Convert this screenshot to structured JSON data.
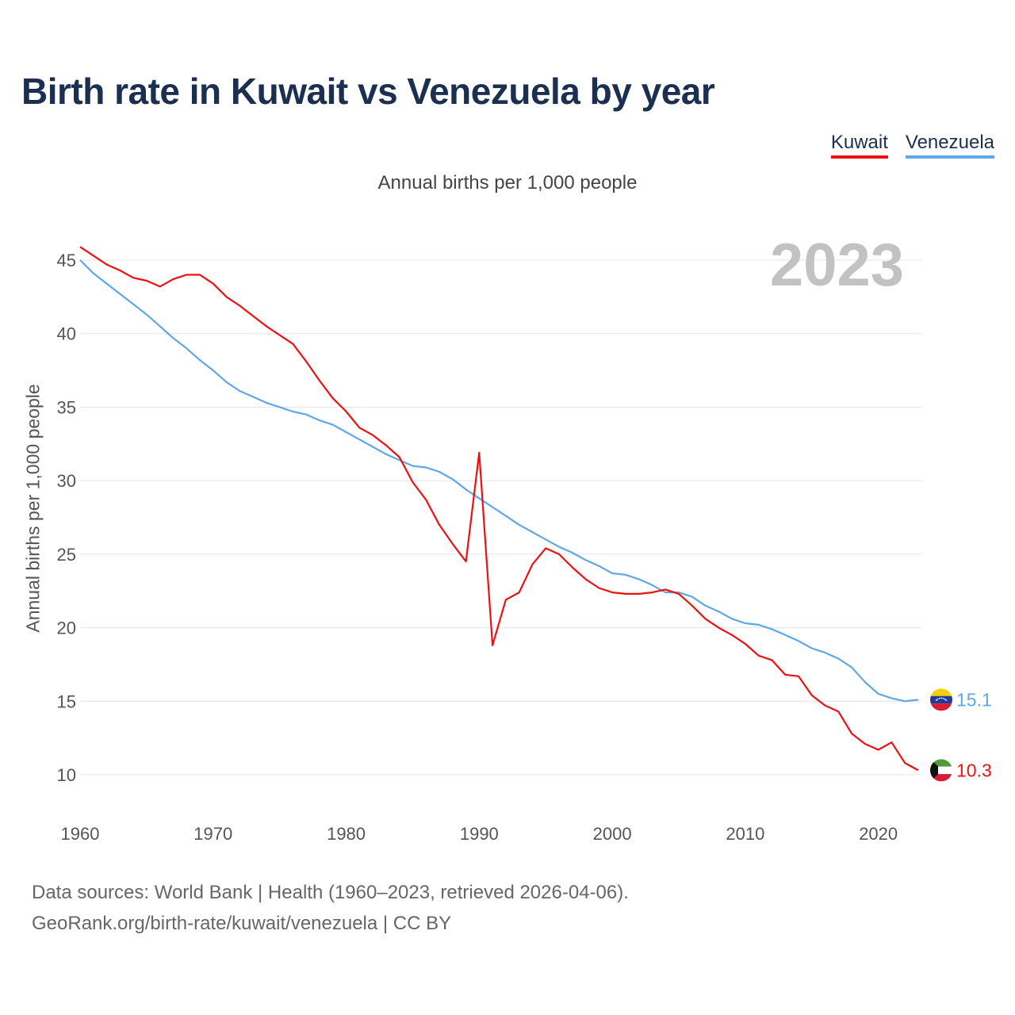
{
  "title": "Birth rate in Kuwait vs Venezuela by year",
  "subtitle": "Annual births per 1,000 people",
  "year_badge": "2023",
  "legend": [
    {
      "name": "Kuwait",
      "color": "#ee1111"
    },
    {
      "name": "Venezuela",
      "color": "#5ea8e8"
    }
  ],
  "footer": {
    "line1": "Data sources: World Bank | Health (1960–2023, retrieved 2026-04-06).",
    "line2": "GeoRank.org/birth-rate/kuwait/venezuela | CC BY"
  },
  "chart_data": {
    "type": "line",
    "title": "Birth rate in Kuwait vs Venezuela by year",
    "xlabel": "",
    "ylabel": "Annual births per 1,000 people",
    "xlim": [
      1960,
      2023
    ],
    "ylim": [
      8,
      46
    ],
    "x_ticks": [
      1960,
      1970,
      1980,
      1990,
      2000,
      2010,
      2020
    ],
    "y_ticks": [
      10,
      15,
      20,
      25,
      30,
      35,
      40,
      45
    ],
    "grid": true,
    "x": [
      1960,
      1961,
      1962,
      1963,
      1964,
      1965,
      1966,
      1967,
      1968,
      1969,
      1970,
      1971,
      1972,
      1973,
      1974,
      1975,
      1976,
      1977,
      1978,
      1979,
      1980,
      1981,
      1982,
      1983,
      1984,
      1985,
      1986,
      1987,
      1988,
      1989,
      1990,
      1991,
      1992,
      1993,
      1994,
      1995,
      1996,
      1997,
      1998,
      1999,
      2000,
      2001,
      2002,
      2003,
      2004,
      2005,
      2006,
      2007,
      2008,
      2009,
      2010,
      2011,
      2012,
      2013,
      2014,
      2015,
      2016,
      2017,
      2018,
      2019,
      2020,
      2021,
      2022,
      2023
    ],
    "series": [
      {
        "name": "Kuwait",
        "color": "#ee1111",
        "end_label": "10.3",
        "values": [
          45.9,
          45.3,
          44.7,
          44.3,
          43.8,
          43.6,
          43.2,
          43.7,
          44.0,
          44.0,
          43.4,
          42.5,
          41.9,
          41.2,
          40.5,
          39.9,
          39.3,
          38.1,
          36.8,
          35.6,
          34.7,
          33.6,
          33.1,
          32.4,
          31.6,
          29.9,
          28.7,
          27.0,
          25.7,
          24.5,
          31.9,
          18.8,
          21.9,
          22.4,
          24.3,
          25.4,
          25.0,
          24.1,
          23.3,
          22.7,
          22.4,
          22.3,
          22.3,
          22.4,
          22.6,
          22.3,
          21.5,
          20.6,
          20.0,
          19.5,
          18.9,
          18.1,
          17.8,
          16.8,
          16.7,
          15.4,
          14.7,
          14.3,
          12.8,
          12.1,
          11.7,
          12.2,
          10.8,
          10.3
        ]
      },
      {
        "name": "Venezuela",
        "color": "#5ea8e8",
        "end_label": "15.1",
        "values": [
          45.0,
          44.1,
          43.4,
          42.7,
          42.0,
          41.3,
          40.5,
          39.7,
          39.0,
          38.2,
          37.5,
          36.7,
          36.1,
          35.7,
          35.3,
          35.0,
          34.7,
          34.5,
          34.1,
          33.8,
          33.3,
          32.8,
          32.3,
          31.8,
          31.4,
          31.0,
          30.9,
          30.6,
          30.1,
          29.4,
          28.8,
          28.2,
          27.6,
          27.0,
          26.5,
          26.0,
          25.5,
          25.1,
          24.6,
          24.2,
          23.7,
          23.6,
          23.3,
          22.9,
          22.4,
          22.4,
          22.1,
          21.5,
          21.1,
          20.6,
          20.3,
          20.2,
          19.9,
          19.5,
          19.1,
          18.6,
          18.3,
          17.9,
          17.3,
          16.3,
          15.5,
          15.2,
          15.0,
          15.1
        ]
      }
    ]
  }
}
